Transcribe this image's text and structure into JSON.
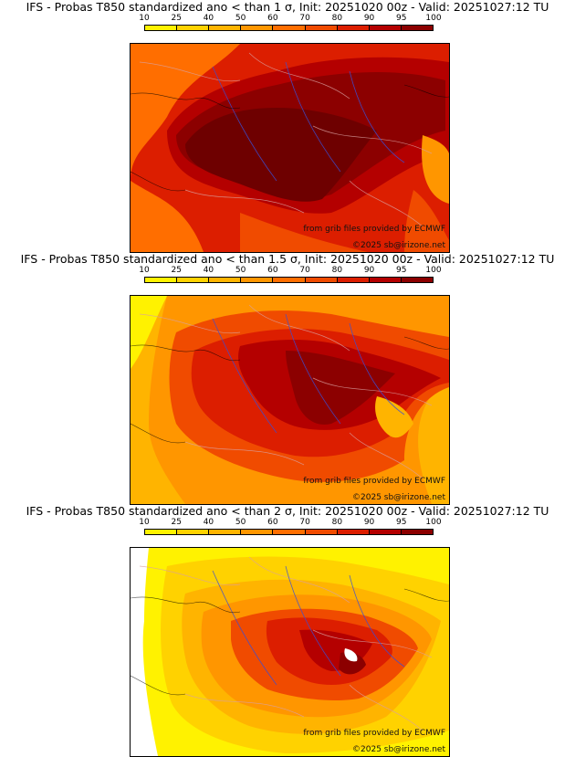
{
  "legend": {
    "ticks": [
      "10",
      "25",
      "40",
      "50",
      "60",
      "70",
      "80",
      "90",
      "95",
      "100"
    ],
    "colors": [
      "#fff200",
      "#ffd200",
      "#ffb400",
      "#ff9600",
      "#ff6e00",
      "#f04b00",
      "#dc1e00",
      "#b40000",
      "#8c0000"
    ]
  },
  "panels": [
    {
      "title": "IFS - Probas T850  standardized ano < than 1 σ, Init: 20251020 00z - Valid: 20251027:12 TU",
      "source_text": "from grib files provided by ECMWF",
      "copyright": "©2025 sb@irizone.net"
    },
    {
      "title": "IFS - Probas T850  standardized ano < than 1.5 σ, Init: 20251020 00z - Valid: 20251027:12 TU",
      "source_text": "from grib files provided by ECMWF",
      "copyright": "©2025 sb@irizone.net"
    },
    {
      "title": "IFS - Probas T850  standardized ano < than 2 σ, Init: 20251020 00z - Valid: 20251027:12 TU",
      "source_text": "from grib files provided by ECMWF",
      "copyright": "©2025 sb@irizone.net"
    }
  ]
}
